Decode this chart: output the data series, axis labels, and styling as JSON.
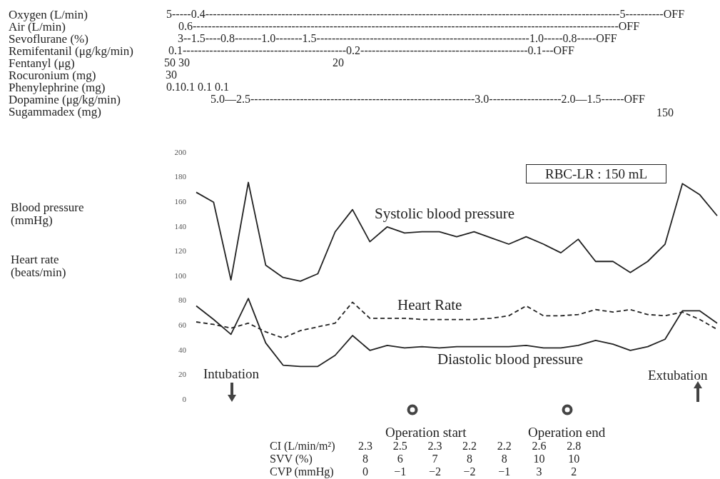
{
  "chart_data": {
    "type": "line",
    "categories": [
      null,
      null,
      null,
      null,
      null,
      null,
      null,
      null,
      null,
      null,
      null,
      null,
      null,
      null,
      null,
      null,
      null,
      null,
      null,
      null,
      null,
      null,
      null,
      null,
      null,
      null,
      null,
      null,
      null,
      null,
      null
    ],
    "series": [
      {
        "name": "Systolic blood pressure",
        "color": "#222222",
        "line_style": "solid",
        "values": [
          168,
          160,
          97,
          176,
          109,
          99,
          96,
          102,
          136,
          154,
          128,
          140,
          135,
          136,
          136,
          132,
          136,
          131,
          126,
          132,
          126,
          119,
          130,
          112,
          112,
          103,
          112,
          126,
          175,
          166,
          149
        ]
      },
      {
        "name": "Heart Rate",
        "color": "#222222",
        "line_style": "dashed",
        "values": [
          63,
          61,
          58,
          62,
          55,
          50,
          56,
          59,
          62,
          79,
          66,
          66,
          66,
          65,
          65,
          65,
          65,
          66,
          68,
          76,
          68,
          68,
          69,
          73,
          71,
          73,
          69,
          68,
          71,
          65,
          57
        ]
      },
      {
        "name": "Diastolic blood pressure",
        "color": "#222222",
        "line_style": "solid",
        "values": [
          76,
          65,
          53,
          82,
          46,
          28,
          27,
          27,
          36,
          52,
          40,
          44,
          42,
          43,
          42,
          43,
          43,
          43,
          43,
          44,
          42,
          42,
          44,
          48,
          45,
          40,
          43,
          49,
          72,
          72,
          62
        ]
      }
    ],
    "ylim": [
      0,
      200
    ],
    "yticks": [
      0,
      20,
      40,
      60,
      80,
      100,
      120,
      140,
      160,
      180,
      200
    ],
    "grid": false,
    "legend": false,
    "marker": "none",
    "tick_labels": "y",
    "annotations": [
      "Oxygen (L/min)",
      "Air (L/min)",
      "Sevoflurane (%)",
      "Remifentanil (μg/kg/min)",
      "Fentanyl (μg)",
      "Rocuronium (mg)",
      "Phenylephrine (mg)",
      "Dopamine (μg/kg/min)",
      "Sugammadex (mg)",
      "5-----0.4-------------------------------------------------------------------------------------------------------------5----------OFF",
      "0.6----------------------------------------------------------------------------------------------------------------OFF",
      "3--1.5----0.8-------1.0-------1.5--------------------------------------------------------1.0-----0.8-----OFF",
      "0.1-------------------------------------------0.2--------------------------------------------0.1---OFF",
      "50 30",
      "20",
      "30",
      "0.10.1 0.1 0.1",
      "5.0—2.5-----------------------------------------------------------3.0-------------------2.0—1.5------OFF",
      "150",
      "RBC-LR : 150 mL",
      "Blood pressure (mmHg)",
      "Heart rate (beats/min)",
      "Intubation",
      "Extubation",
      "Operation start",
      "Operation end",
      "CI (L/min/m²)",
      "SVV (%)",
      "CVP (mmHg)",
      "2.3 2.5 2.3 2.2 2.2 2.6 2.8",
      "8 6 7 8 8 10 10",
      "0 −1 −2 −2 −1 3 2"
    ]
  }
}
